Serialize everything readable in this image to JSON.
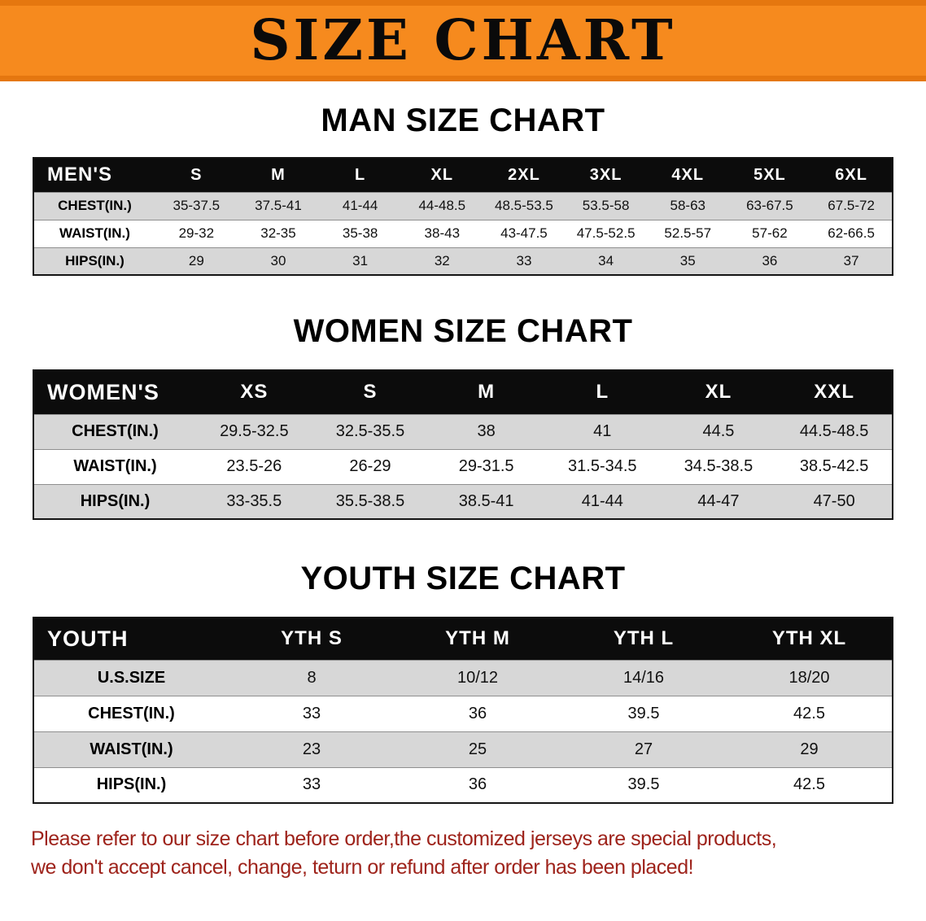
{
  "banner": {
    "title": "SIZE CHART"
  },
  "colors": {
    "banner_bg": "#f68a1e",
    "banner_edge": "#e5770f",
    "table_header_bg": "#0c0c0c",
    "row_stripe": "#d7d7d7",
    "disclaimer_text": "#9e231b"
  },
  "chart_data": [
    {
      "type": "table",
      "title": "MAN SIZE CHART",
      "columns": [
        "MEN'S",
        "S",
        "M",
        "L",
        "XL",
        "2XL",
        "3XL",
        "4XL",
        "5XL",
        "6XL"
      ],
      "rows": [
        {
          "label": "CHEST(IN.)",
          "values": [
            "35-37.5",
            "37.5-41",
            "41-44",
            "44-48.5",
            "48.5-53.5",
            "53.5-58",
            "58-63",
            "63-67.5",
            "67.5-72"
          ]
        },
        {
          "label": "WAIST(IN.)",
          "values": [
            "29-32",
            "32-35",
            "35-38",
            "38-43",
            "43-47.5",
            "47.5-52.5",
            "52.5-57",
            "57-62",
            "62-66.5"
          ]
        },
        {
          "label": "HIPS(IN.)",
          "values": [
            "29",
            "30",
            "31",
            "32",
            "33",
            "34",
            "35",
            "36",
            "37"
          ]
        }
      ]
    },
    {
      "type": "table",
      "title": "WOMEN SIZE CHART",
      "columns": [
        "WOMEN'S",
        "XS",
        "S",
        "M",
        "L",
        "XL",
        "XXL"
      ],
      "rows": [
        {
          "label": "CHEST(IN.)",
          "values": [
            "29.5-32.5",
            "32.5-35.5",
            "38",
            "41",
            "44.5",
            "44.5-48.5"
          ]
        },
        {
          "label": "WAIST(IN.)",
          "values": [
            "23.5-26",
            "26-29",
            "29-31.5",
            "31.5-34.5",
            "34.5-38.5",
            "38.5-42.5"
          ]
        },
        {
          "label": "HIPS(IN.)",
          "values": [
            "33-35.5",
            "35.5-38.5",
            "38.5-41",
            "41-44",
            "44-47",
            "47-50"
          ]
        }
      ]
    },
    {
      "type": "table",
      "title": "YOUTH SIZE CHART",
      "columns": [
        "YOUTH",
        "YTH S",
        "YTH M",
        "YTH L",
        "YTH XL"
      ],
      "rows": [
        {
          "label": "U.S.SIZE",
          "values": [
            "8",
            "10/12",
            "14/16",
            "18/20"
          ]
        },
        {
          "label": "CHEST(IN.)",
          "values": [
            "33",
            "36",
            "39.5",
            "42.5"
          ]
        },
        {
          "label": "WAIST(IN.)",
          "values": [
            "23",
            "25",
            "27",
            "29"
          ]
        },
        {
          "label": "HIPS(IN.)",
          "values": [
            "33",
            "36",
            "39.5",
            "42.5"
          ]
        }
      ]
    }
  ],
  "disclaimer": {
    "lines": [
      "Please refer to our size chart before order,the customized jerseys are special products,",
      "we don't accept cancel, change, teturn or refund after order has been placed!"
    ]
  }
}
